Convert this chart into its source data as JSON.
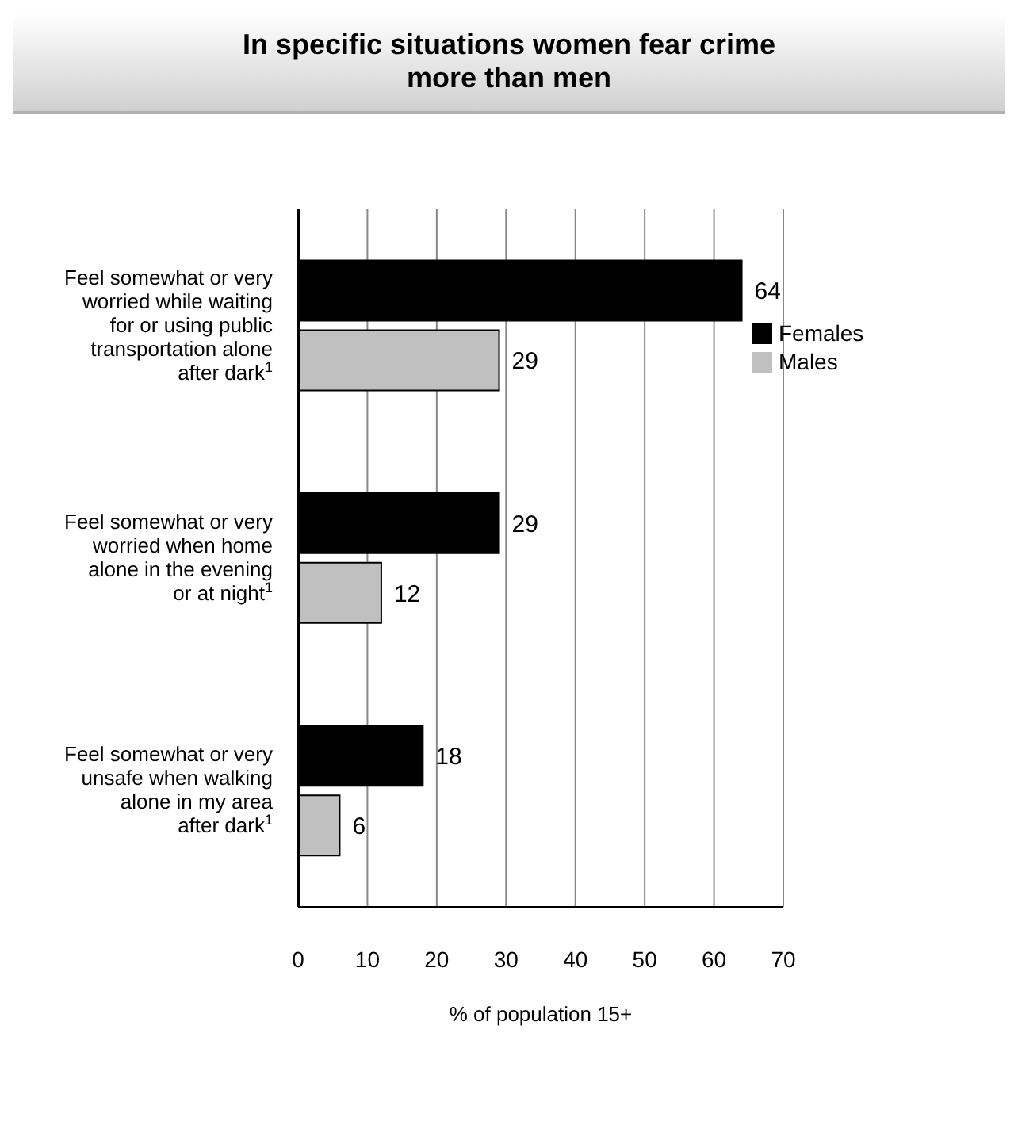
{
  "chart_data": {
    "type": "bar",
    "orientation": "horizontal",
    "title": "In specific situations women fear crime more than men",
    "xlabel": "% of population 15+",
    "categories": [
      "Feel somewhat or very worried while waiting for or using public transportation alone after dark$^{1}$",
      "Feel somewhat or very worried when home alone in the evening or at night$^{1}$",
      "Feel somewhat or very unsafe when walking alone in my area after dark$^{1}$"
    ],
    "series": [
      {
        "name": "Females",
        "color": "#000000",
        "values": [
          64,
          29,
          18
        ]
      },
      {
        "name": "Males",
        "color": "#c0c0c0",
        "values": [
          29,
          12,
          6
        ]
      }
    ],
    "xlim": [
      0,
      70
    ],
    "xticks": [
      0,
      10,
      20,
      30,
      40,
      50,
      60,
      70
    ],
    "grid": "x",
    "legend": "right",
    "data_labels": true
  }
}
